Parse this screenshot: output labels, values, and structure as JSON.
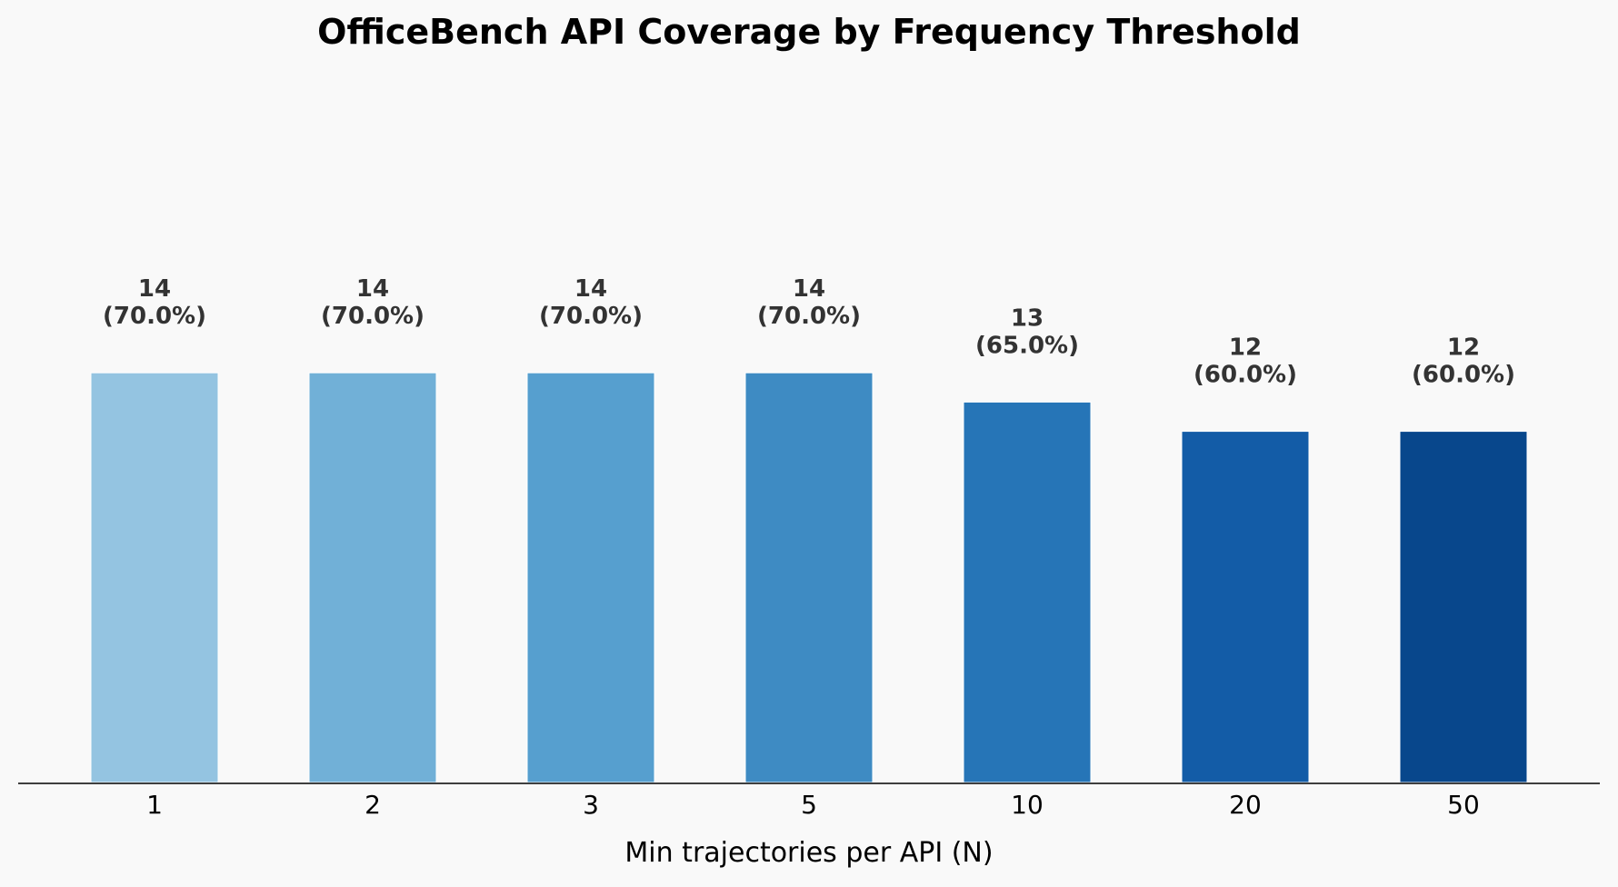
{
  "chart_data": {
    "type": "bar",
    "title": "OfficeBench API Coverage by Frequency Threshold",
    "xlabel": "Min trajectories per API (N)",
    "ylabel": "",
    "categories": [
      "1",
      "2",
      "3",
      "5",
      "10",
      "20",
      "50"
    ],
    "values": [
      14,
      14,
      14,
      14,
      13,
      12,
      12
    ],
    "percent_labels": [
      "(70.0%)",
      "(70.0%)",
      "(70.0%)",
      "(70.0%)",
      "(65.0%)",
      "(60.0%)",
      "(60.0%)"
    ],
    "colors": [
      "#94c4e1",
      "#71b0d7",
      "#569fcf",
      "#3e8bc3",
      "#2675b7",
      "#135ca7",
      "#08478c"
    ],
    "ylim": [
      0,
      20
    ],
    "grid": false,
    "legend": "none"
  }
}
